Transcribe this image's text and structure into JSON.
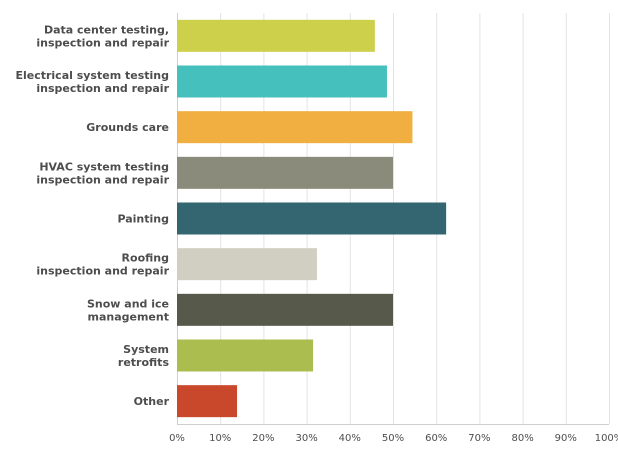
{
  "chart_data": {
    "type": "bar",
    "orientation": "horizontal",
    "categories": [
      [
        "Data center testing,",
        "inspection and repair"
      ],
      [
        "Electrical system testing",
        "inspection and repair"
      ],
      [
        "Grounds care"
      ],
      [
        "HVAC system testing",
        "inspection and repair"
      ],
      [
        "Painting"
      ],
      [
        "Roofing",
        "inspection and repair"
      ],
      [
        "Snow and ice",
        "management"
      ],
      [
        "System",
        "retrofits"
      ],
      [
        "Other"
      ]
    ],
    "values": [
      45.8,
      48.6,
      54.5,
      50.0,
      62.3,
      32.4,
      50.0,
      31.5,
      13.9
    ],
    "colors": [
      "#cdd04a",
      "#45c0bd",
      "#f0af40",
      "#8a8b7a",
      "#336670",
      "#d1cfc1",
      "#575a4b",
      "#aabd4e",
      "#c9472a"
    ],
    "xlim": [
      0,
      100
    ],
    "xticks": [
      "0%",
      "10%",
      "20%",
      "30%",
      "40%",
      "50%",
      "60%",
      "70%",
      "80%",
      "90%",
      "100%"
    ],
    "grid": true,
    "title": "",
    "xlabel": "",
    "ylabel": ""
  }
}
